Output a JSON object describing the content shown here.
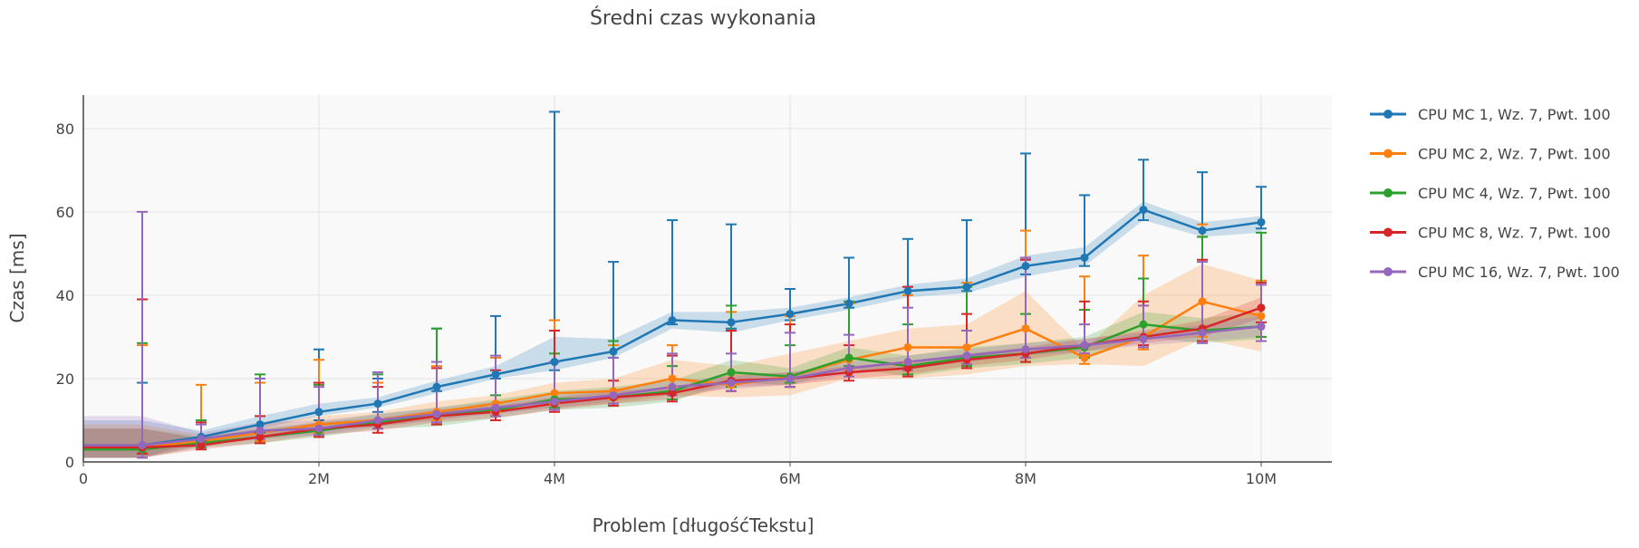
{
  "chart_data": {
    "type": "line",
    "title": "Średni czas wykonania",
    "xlabel": "Problem [długośćTekstu]",
    "ylabel": "Czas [ms]",
    "xlim": [
      0,
      10600000
    ],
    "ylim": [
      0,
      88
    ],
    "x_ticks": [
      0,
      2000000,
      4000000,
      6000000,
      8000000,
      10000000
    ],
    "x_tick_labels": [
      "0",
      "2M",
      "4M",
      "6M",
      "8M",
      "10M"
    ],
    "y_ticks": [
      0,
      20,
      40,
      60,
      80
    ],
    "y_tick_labels": [
      "0",
      "20",
      "40",
      "60",
      "80"
    ],
    "grid": true,
    "legend_position": "right",
    "x": [
      500000,
      1000000,
      1500000,
      2000000,
      2500000,
      3000000,
      3500000,
      4000000,
      4500000,
      5000000,
      5500000,
      6000000,
      6500000,
      7000000,
      7500000,
      8000000,
      8500000,
      9000000,
      9500000,
      10000000
    ],
    "series": [
      {
        "name": "CPU MC 1, Wz. 7, Pwt. 100",
        "color": "#1f77b4",
        "values": [
          4,
          6,
          9,
          12,
          14,
          18,
          21,
          24,
          26.5,
          34,
          33.5,
          35.5,
          38,
          41,
          42,
          47,
          49,
          60.5,
          55.5,
          57.5
        ],
        "err_low": [
          2,
          5,
          7,
          10,
          12,
          17,
          20,
          22,
          25,
          33,
          32,
          34,
          37,
          40,
          41,
          45,
          47,
          58,
          54,
          56
        ],
        "err_high": [
          19,
          10,
          20,
          27,
          20,
          32,
          35,
          84,
          48,
          58,
          57,
          41.5,
          49,
          53.5,
          58,
          74,
          64,
          72.5,
          69.5,
          66
        ],
        "band_low": [
          1,
          5,
          8,
          11,
          13,
          16.5,
          20,
          22,
          25,
          32,
          31,
          34,
          36.5,
          39.5,
          40.5,
          44.5,
          47,
          58,
          54,
          55
        ],
        "band_high": [
          10,
          7.5,
          11,
          14,
          15.5,
          19.5,
          23,
          30,
          29.5,
          36,
          36,
          37,
          39.5,
          42.5,
          44,
          49.5,
          51.5,
          62.5,
          57.5,
          59
        ]
      },
      {
        "name": "CPU MC 2, Wz. 7, Pwt. 100",
        "color": "#ff7f0e",
        "values": [
          3.5,
          5,
          7,
          9,
          10,
          12,
          14,
          16.5,
          17,
          20,
          18.5,
          20.5,
          24.5,
          27.5,
          27.5,
          32,
          25,
          30,
          38.5,
          35
        ],
        "err_low": [
          2,
          4,
          5,
          7,
          8,
          10,
          12,
          14,
          15,
          18,
          17,
          18,
          22,
          24,
          23,
          25,
          23.5,
          27,
          30,
          30
        ],
        "err_high": [
          28,
          18.5,
          19,
          24.5,
          19,
          23,
          25,
          34,
          28,
          28,
          36,
          35,
          38,
          40,
          43,
          55.5,
          44.5,
          49.5,
          57,
          43.5
        ],
        "band_low": [
          1,
          4,
          5.5,
          7.5,
          8.5,
          10,
          12,
          13,
          14,
          16,
          15.5,
          16,
          20,
          20,
          21,
          23,
          23.5,
          23,
          29.5,
          26.5
        ],
        "band_high": [
          9,
          6.5,
          9,
          11,
          12,
          14.5,
          16,
          19,
          20,
          24.5,
          23,
          26,
          29,
          32,
          33,
          41,
          27,
          40,
          47.5,
          43.5
        ]
      },
      {
        "name": "CPU MC 4, Wz. 7, Pwt. 100",
        "color": "#2ca02c",
        "values": [
          3,
          4.5,
          6,
          7.5,
          9.5,
          11,
          12.5,
          15,
          15.5,
          17,
          21.5,
          20.5,
          25,
          23,
          25,
          26,
          27.5,
          33,
          31.5,
          32.5
        ],
        "err_low": [
          2,
          3.5,
          4.5,
          6,
          8,
          9,
          11,
          13,
          14,
          15,
          18,
          19,
          23,
          21,
          23,
          24,
          25,
          30,
          29,
          30
        ],
        "err_high": [
          28.5,
          10,
          21,
          18.5,
          21,
          32,
          16,
          26,
          29,
          23,
          37.5,
          28,
          38.5,
          33,
          42,
          35.5,
          36.5,
          44,
          54,
          55
        ],
        "band_low": [
          1,
          3.5,
          4.5,
          6,
          8,
          8.5,
          10.5,
          12.5,
          13,
          14.5,
          19,
          18.5,
          22.5,
          20.5,
          22.5,
          23.5,
          25,
          30,
          28.5,
          29.5
        ],
        "band_high": [
          8,
          6,
          8,
          9.5,
          11.5,
          13,
          15,
          17,
          18,
          19.5,
          24.5,
          22.5,
          27.5,
          25.5,
          27.5,
          28.5,
          30,
          36,
          34.5,
          36
        ]
      },
      {
        "name": "CPU MC 8, Wz. 7, Pwt. 100",
        "color": "#d62728",
        "values": [
          3.5,
          4,
          6,
          8,
          9,
          11,
          12,
          14,
          15.5,
          16.5,
          19.5,
          20,
          21.5,
          22.5,
          24.5,
          26,
          28,
          30,
          32,
          37
        ],
        "err_low": [
          2,
          3,
          4.5,
          6,
          7,
          9,
          10,
          12,
          13.5,
          14.5,
          17,
          18,
          19.5,
          20.5,
          22.5,
          24,
          26,
          28,
          29,
          33.5
        ],
        "err_high": [
          39,
          9.5,
          11,
          19,
          18,
          22.5,
          22,
          31.5,
          19.5,
          25.5,
          31.5,
          33,
          28,
          42,
          35.5,
          48.5,
          38.5,
          38.5,
          48.5,
          43
        ],
        "band_low": [
          1,
          3,
          4.5,
          6.5,
          7.5,
          9.5,
          10.5,
          12.5,
          14,
          15,
          18,
          18.5,
          20,
          21,
          23,
          24.5,
          26.5,
          28.5,
          30,
          34.5
        ],
        "band_high": [
          8,
          5.5,
          7.5,
          9.5,
          10.5,
          12.5,
          13.5,
          15.5,
          17,
          18,
          21,
          21.5,
          23,
          24,
          26,
          27.5,
          29.5,
          31.5,
          34,
          39.5
        ]
      },
      {
        "name": "CPU MC 16, Wz. 7, Pwt. 100",
        "color": "#9467bd",
        "values": [
          4,
          5.5,
          7.5,
          8,
          10,
          11.5,
          13,
          14.5,
          16,
          18,
          19,
          20,
          22.5,
          24,
          25.5,
          27,
          28,
          29.5,
          31,
          32.5
        ],
        "err_low": [
          1,
          4,
          5.5,
          6.5,
          8,
          9.5,
          11,
          12.5,
          14,
          16,
          17,
          18,
          20.5,
          22,
          23.5,
          25,
          26,
          27.5,
          28.5,
          29
        ],
        "err_high": [
          60,
          9,
          20,
          18,
          21.5,
          24,
          25.5,
          24,
          25,
          26,
          26,
          31,
          30.5,
          37,
          31.5,
          49,
          33,
          37.5,
          48,
          42.5
        ],
        "band_low": [
          1,
          4,
          5.5,
          6.5,
          8.5,
          10,
          11.5,
          13,
          14.5,
          16.5,
          17.5,
          18.5,
          21,
          22.5,
          24,
          25.5,
          26.5,
          28,
          29,
          30
        ],
        "band_high": [
          11,
          7,
          9.5,
          10,
          11.5,
          13,
          14.5,
          16,
          17.5,
          19.5,
          20.5,
          21.5,
          24,
          25.5,
          27,
          28.5,
          29.5,
          31,
          33,
          35
        ]
      }
    ]
  }
}
